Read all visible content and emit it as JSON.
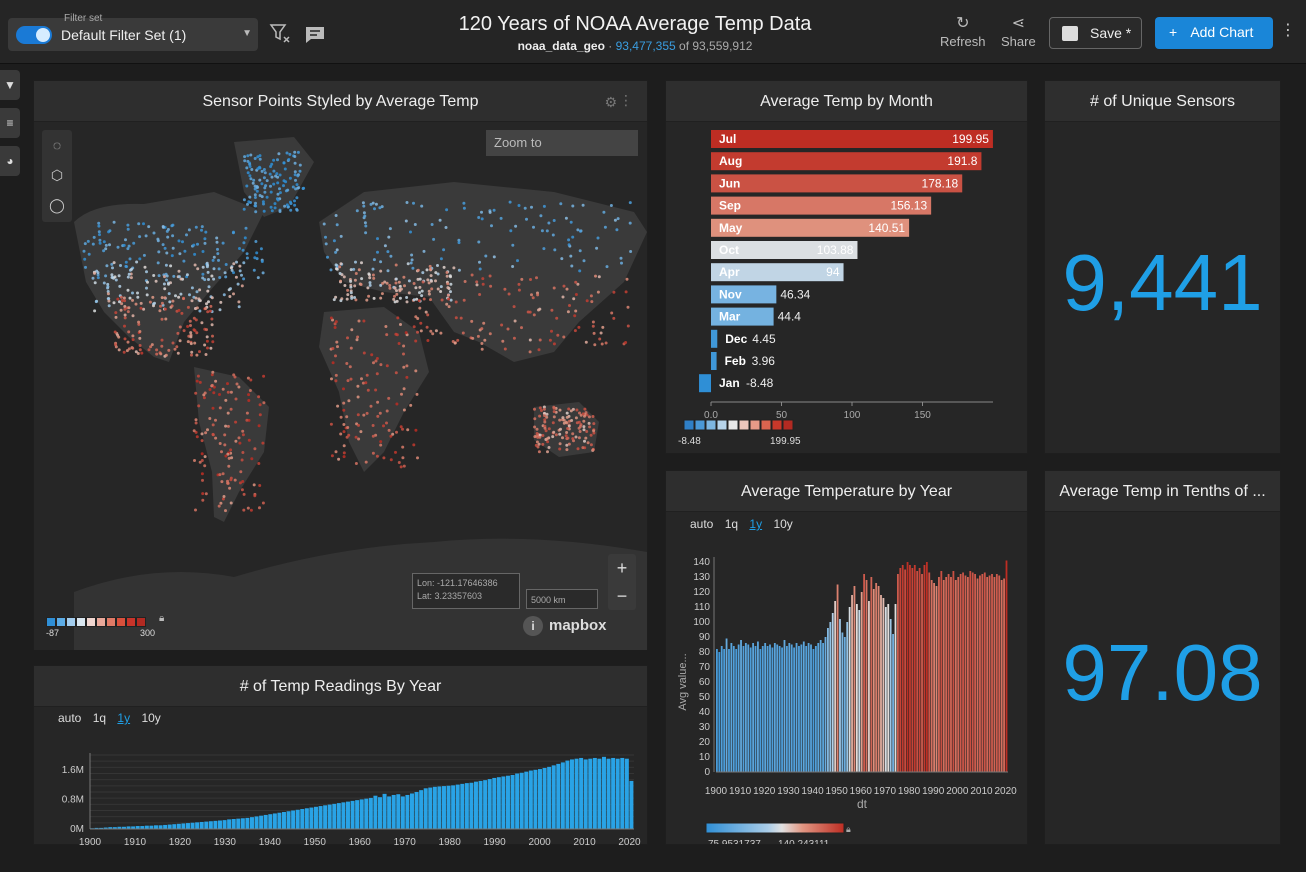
{
  "header": {
    "filter_set_caption": "Filter set",
    "filter_set_name": "Default Filter Set (1)",
    "title": "120 Years of NOAA Average Temp Data",
    "table_name": "noaa_data_geo",
    "row_count": "93,477,355",
    "row_total": "of 93,559,912",
    "refresh_label": "Refresh",
    "share_label": "Share",
    "save_label": "Save *",
    "add_chart_label": "Add Chart",
    "accent_color": "#1a86d8"
  },
  "side_tabs": [
    "filter-icon",
    "sliders-icon",
    "palette-icon"
  ],
  "map_panel": {
    "title": "Sensor Points Styled by Average Temp",
    "zoom_to_placeholder": "Zoom to",
    "coords_lon": "Lon: -121.17646386",
    "coords_lat": "Lat: 3.23357603",
    "scale_label": "5000 km",
    "mapbox_label": "mapbox",
    "legend_min": "-87",
    "legend_max": "300",
    "legend_colors": [
      "#2f8fd6",
      "#5cace6",
      "#a3cdee",
      "#d9e6f0",
      "#f0d6d0",
      "#e9a89a",
      "#e07a66",
      "#d9503c",
      "#c8342a",
      "#b22a22"
    ]
  },
  "month_panel": {
    "title": "Average Temp by Month",
    "legend_min": "-8.48",
    "legend_max": "199.95",
    "legend_colors": [
      "#2f7fc6",
      "#4a98d6",
      "#7db6e0",
      "#b7d4ea",
      "#e8e8e8",
      "#ecc6bc",
      "#e79b88",
      "#d9644f",
      "#c8382a",
      "#b22a22"
    ],
    "chart_data": {
      "type": "bar",
      "orientation": "horizontal",
      "categories": [
        "Jul",
        "Aug",
        "Jun",
        "Sep",
        "May",
        "Oct",
        "Apr",
        "Nov",
        "Mar",
        "Dec",
        "Feb",
        "Jan"
      ],
      "values": [
        199.95,
        191.8,
        178.18,
        156.13,
        140.51,
        103.88,
        94,
        46.34,
        44.4,
        4.45,
        3.96,
        -8.48
      ],
      "value_labels": [
        "199.95",
        "191.8",
        "178.18",
        "156.13",
        "140.51",
        "103.88",
        "94",
        "46.34",
        "44.4",
        "4.45",
        "3.96",
        "-8.48"
      ],
      "xticks": [
        "0.0",
        "50",
        "100",
        "150"
      ],
      "xlim": [
        -10,
        200
      ]
    }
  },
  "sensors_panel": {
    "title": "# of Unique Sensors",
    "value": "9,441"
  },
  "avg_year_panel": {
    "title": "Average Temperature by Year",
    "granularity": [
      "auto",
      "1q",
      "1y",
      "10y"
    ],
    "active": "1y",
    "legend_min": "75.9531737...",
    "legend_max": "140.243111...",
    "chart_data": {
      "type": "bar",
      "xlabel": "dt",
      "ylabel": "Avg value...",
      "ylim": [
        0,
        140
      ],
      "yticks": [
        "0",
        "10",
        "20",
        "30",
        "40",
        "50",
        "60",
        "70",
        "80",
        "90",
        "100",
        "110",
        "120",
        "130",
        "140"
      ],
      "xticks": [
        "1900",
        "1910",
        "1920",
        "1930",
        "1940",
        "1950",
        "1960",
        "1970",
        "1980",
        "1990",
        "2000",
        "2010",
        "2020"
      ],
      "x_start": 1900,
      "values": [
        82,
        80,
        84,
        82,
        89,
        82,
        86,
        84,
        82,
        85,
        88,
        84,
        86,
        85,
        83,
        86,
        84,
        87,
        82,
        84,
        86,
        84,
        85,
        83,
        86,
        85,
        84,
        83,
        88,
        84,
        86,
        85,
        83,
        86,
        84,
        85,
        87,
        84,
        86,
        85,
        82,
        84,
        86,
        88,
        86,
        90,
        96,
        100,
        106,
        114,
        125,
        102,
        93,
        90,
        100,
        110,
        118,
        124,
        112,
        108,
        120,
        132,
        128,
        114,
        130,
        122,
        126,
        124,
        118,
        116,
        110,
        112,
        102,
        92,
        112,
        132,
        136,
        138,
        135,
        140,
        138,
        136,
        138,
        134,
        136,
        132,
        138,
        140,
        133,
        128,
        126,
        124,
        130,
        134,
        128,
        130,
        132,
        130,
        134,
        128,
        130,
        132,
        133,
        131,
        130,
        134,
        133,
        132,
        129,
        131,
        132,
        133,
        130,
        131,
        132,
        130,
        132,
        131,
        128,
        129,
        141
      ]
    }
  },
  "tenths_panel": {
    "title": "Average Temp in Tenths of ...",
    "value": "97.08"
  },
  "readings_panel": {
    "title": "# of Temp Readings By Year",
    "granularity": [
      "auto",
      "1q",
      "1y",
      "10y"
    ],
    "active": "1y",
    "chart_data": {
      "type": "bar",
      "xlabel": "dt",
      "yticks": [
        "0M",
        "0.8M",
        "1.6M"
      ],
      "ylim": [
        0,
        2.0
      ],
      "xticks": [
        "1900",
        "1910",
        "1920",
        "1930",
        "1940",
        "1950",
        "1960",
        "1970",
        "1980",
        "1990",
        "2000",
        "2010",
        "2020"
      ],
      "x_start": 1900,
      "values": [
        0.02,
        0.03,
        0.03,
        0.04,
        0.05,
        0.05,
        0.06,
        0.06,
        0.07,
        0.07,
        0.08,
        0.08,
        0.09,
        0.09,
        0.1,
        0.1,
        0.11,
        0.12,
        0.13,
        0.14,
        0.15,
        0.16,
        0.17,
        0.18,
        0.19,
        0.2,
        0.21,
        0.22,
        0.23,
        0.24,
        0.26,
        0.27,
        0.28,
        0.29,
        0.3,
        0.32,
        0.34,
        0.36,
        0.38,
        0.4,
        0.42,
        0.44,
        0.46,
        0.48,
        0.5,
        0.52,
        0.54,
        0.56,
        0.58,
        0.6,
        0.62,
        0.64,
        0.66,
        0.68,
        0.7,
        0.72,
        0.74,
        0.76,
        0.78,
        0.8,
        0.82,
        0.84,
        0.9,
        0.86,
        0.95,
        0.88,
        0.92,
        0.94,
        0.88,
        0.92,
        0.96,
        1.0,
        1.05,
        1.1,
        1.12,
        1.14,
        1.15,
        1.16,
        1.17,
        1.18,
        1.2,
        1.22,
        1.24,
        1.25,
        1.28,
        1.3,
        1.32,
        1.35,
        1.38,
        1.4,
        1.42,
        1.44,
        1.46,
        1.5,
        1.52,
        1.55,
        1.58,
        1.6,
        1.62,
        1.65,
        1.68,
        1.72,
        1.76,
        1.8,
        1.85,
        1.88,
        1.9,
        1.92,
        1.88,
        1.9,
        1.92,
        1.9,
        1.95,
        1.9,
        1.92,
        1.9,
        1.92,
        1.9,
        1.3
      ]
    }
  }
}
